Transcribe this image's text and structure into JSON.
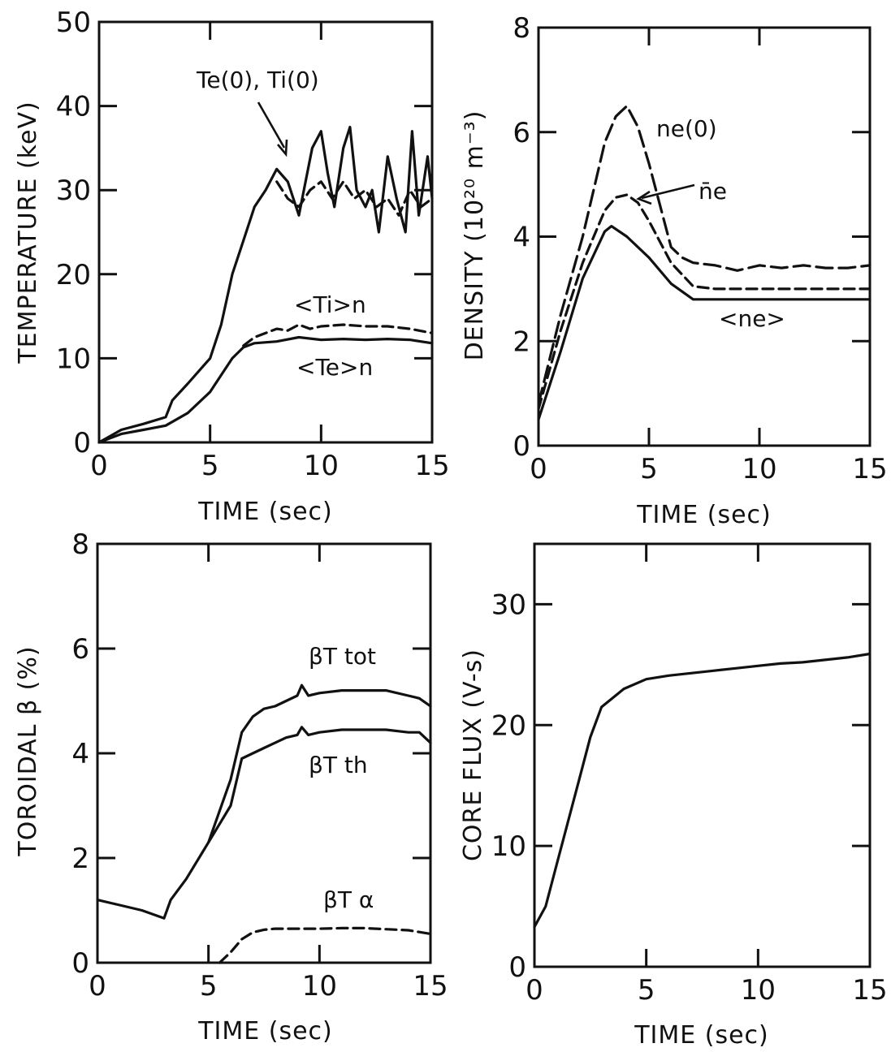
{
  "chart_data": [
    {
      "type": "line",
      "xlabel": "TIME (sec)",
      "ylabel": "TEMPERATURE (keV)",
      "xlim": [
        0,
        15
      ],
      "ylim": [
        0,
        50
      ],
      "xticks": [
        0,
        5,
        10,
        15
      ],
      "yticks": [
        0,
        10,
        20,
        30,
        40,
        50
      ],
      "series": [
        {
          "name": "Te(0), Ti(0)",
          "style": "solid",
          "x": [
            0,
            1,
            2,
            3,
            3.3,
            4,
            5,
            5.5,
            6,
            6.5,
            7,
            7.5,
            8,
            8.5,
            9,
            9.3,
            9.6,
            10,
            10.3,
            10.6,
            11,
            11.3,
            11.6,
            12,
            12.3,
            12.6,
            13,
            13.4,
            13.8,
            14.1,
            14.4,
            14.8,
            15
          ],
          "y": [
            0,
            1.5,
            2.2,
            3,
            5,
            7,
            10,
            14,
            20,
            24,
            28,
            30,
            32.5,
            31,
            27,
            31,
            35,
            37,
            32,
            28,
            35,
            37.5,
            30,
            28,
            30,
            25,
            34,
            29,
            25,
            37,
            27,
            34,
            29
          ]
        },
        {
          "name": "",
          "style": "dashed",
          "x": [
            8,
            8.5,
            9,
            9.5,
            10,
            10.5,
            11,
            11.5,
            12,
            12.5,
            13,
            13.5,
            14,
            14.5,
            15
          ],
          "y": [
            31,
            29,
            28,
            30,
            31,
            29,
            31,
            29,
            30,
            28,
            29,
            27,
            30,
            28,
            29
          ]
        },
        {
          "name": "<Ti>n",
          "style": "dashed",
          "x": [
            6.5,
            7,
            8,
            8.5,
            9,
            9.5,
            10,
            11,
            12,
            13,
            14,
            15
          ],
          "y": [
            11.5,
            12.5,
            13.5,
            13.3,
            14,
            13.5,
            13.8,
            14,
            13.8,
            13.8,
            13.5,
            13
          ]
        },
        {
          "name": "<Te>n",
          "style": "solid",
          "x": [
            0,
            1,
            2,
            3,
            4,
            5,
            5.5,
            6,
            6.5,
            7,
            8,
            9,
            10,
            11,
            12,
            13,
            14,
            15
          ],
          "y": [
            0,
            1,
            1.5,
            2,
            3.5,
            6,
            8,
            10,
            11.3,
            11.8,
            12,
            12.5,
            12.2,
            12.3,
            12.2,
            12.3,
            12.2,
            11.8
          ]
        }
      ]
    },
    {
      "type": "line",
      "xlabel": "TIME (sec)",
      "ylabel": "DENSITY (10²⁰ m⁻³)",
      "xlim": [
        0,
        15
      ],
      "ylim": [
        0,
        8
      ],
      "xticks": [
        0,
        5,
        10,
        15
      ],
      "yticks": [
        0,
        2,
        4,
        6,
        8
      ],
      "series": [
        {
          "name": "ne(0)",
          "style": "long-dash",
          "x": [
            0,
            1,
            2,
            3,
            3.5,
            4,
            4.5,
            5,
            5.5,
            6,
            6.5,
            7,
            8,
            9,
            10,
            11,
            12,
            13,
            14,
            15
          ],
          "y": [
            0.8,
            2.5,
            4,
            5.8,
            6.3,
            6.5,
            6.1,
            5.4,
            4.6,
            3.8,
            3.6,
            3.5,
            3.45,
            3.35,
            3.45,
            3.4,
            3.45,
            3.4,
            3.4,
            3.45
          ]
        },
        {
          "name": "n̄e",
          "style": "dashed",
          "x": [
            0,
            1,
            2,
            3,
            3.5,
            4,
            4.5,
            5,
            6,
            7,
            8,
            9,
            10,
            12,
            15
          ],
          "y": [
            0.7,
            2.2,
            3.5,
            4.5,
            4.75,
            4.8,
            4.65,
            4.3,
            3.5,
            3.05,
            3,
            3,
            3,
            3,
            3
          ]
        },
        {
          "name": "<ne>",
          "style": "solid",
          "x": [
            0,
            1,
            2,
            3,
            3.3,
            4,
            5,
            6,
            7,
            8,
            10,
            12,
            15
          ],
          "y": [
            0.5,
            1.8,
            3.2,
            4.1,
            4.2,
            4,
            3.6,
            3.1,
            2.8,
            2.8,
            2.8,
            2.8,
            2.8
          ]
        }
      ]
    },
    {
      "type": "line",
      "xlabel": "TIME (sec)",
      "ylabel": "TOROIDAL β (%)",
      "xlim": [
        0,
        15
      ],
      "ylim": [
        0,
        8
      ],
      "xticks": [
        0,
        5,
        10,
        15
      ],
      "yticks": [
        0,
        2,
        4,
        6,
        8
      ],
      "series": [
        {
          "name": "tot",
          "style": "solid",
          "x": [
            0,
            1,
            2,
            3,
            3.3,
            4,
            5,
            6,
            6.5,
            7,
            7.5,
            8,
            8.5,
            9,
            9.2,
            9.5,
            10,
            11,
            12,
            13,
            14,
            14.5,
            15
          ],
          "y": [
            1.2,
            1.1,
            1,
            0.85,
            1.2,
            1.6,
            2.3,
            3.5,
            4.4,
            4.7,
            4.85,
            4.9,
            5.0,
            5.1,
            5.3,
            5.1,
            5.15,
            5.2,
            5.2,
            5.2,
            5.1,
            5.05,
            4.9
          ]
        },
        {
          "name": "th",
          "style": "solid",
          "x": [
            5,
            6,
            6.5,
            7,
            7.5,
            8,
            8.5,
            9,
            9.2,
            9.5,
            10,
            11,
            12,
            13,
            14,
            14.5,
            15
          ],
          "y": [
            2.3,
            3.0,
            3.9,
            4.0,
            4.1,
            4.2,
            4.3,
            4.35,
            4.5,
            4.35,
            4.4,
            4.45,
            4.45,
            4.45,
            4.4,
            4.4,
            4.2
          ]
        },
        {
          "name": "α",
          "style": "dashed",
          "x": [
            5.5,
            6,
            6.5,
            7,
            7.5,
            8,
            9,
            10,
            11,
            12,
            13,
            14,
            15
          ],
          "y": [
            0,
            0.2,
            0.45,
            0.58,
            0.63,
            0.65,
            0.65,
            0.65,
            0.66,
            0.66,
            0.64,
            0.62,
            0.55
          ]
        }
      ]
    },
    {
      "type": "line",
      "xlabel": "TIME (sec)",
      "ylabel": "CORE FLUX (V-s)",
      "xlim": [
        0,
        15
      ],
      "ylim": [
        0,
        35
      ],
      "xticks": [
        0,
        5,
        10,
        15
      ],
      "yticks": [
        0,
        10,
        20,
        30
      ],
      "series": [
        {
          "name": "",
          "style": "solid",
          "x": [
            0,
            0.5,
            1,
            1.5,
            2,
            2.5,
            3,
            4,
            5,
            6,
            7,
            8,
            9,
            10,
            11,
            12,
            13,
            14,
            15
          ],
          "y": [
            3.3,
            5,
            8.5,
            12,
            15.5,
            19,
            21.5,
            23,
            23.8,
            24.1,
            24.3,
            24.5,
            24.7,
            24.9,
            25.1,
            25.2,
            25.4,
            25.6,
            25.9
          ]
        }
      ]
    }
  ],
  "labels": {
    "p1_te0_ti0": "Te(0), Ti(0)",
    "p1_ti": "<Ti>n",
    "p1_te": "<Te>n",
    "p2_ne0": "ne(0)",
    "p2_nebar": "n̄e",
    "p2_ne": "<ne>",
    "p3_tot": "βT tot",
    "p3_th": "βT th",
    "p3_alpha": "βT α"
  }
}
